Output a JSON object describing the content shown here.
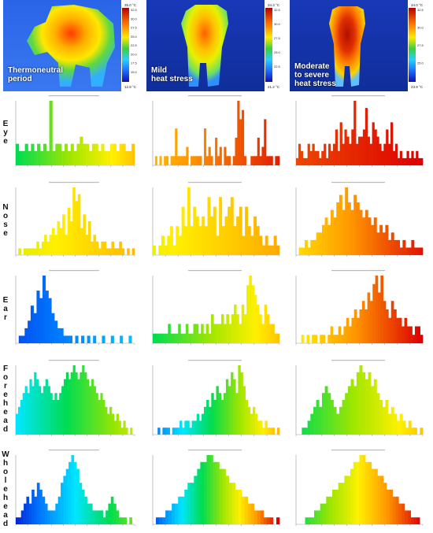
{
  "conditions": [
    {
      "label": "Thermoneutral\nperiod",
      "scale_max": "35.0 °C",
      "scale_min": "12.8 °C",
      "ticks": [
        "32.5",
        "30.0",
        "27.5",
        "25.0",
        "22.5",
        "20.0",
        "17.5",
        "15.0"
      ]
    },
    {
      "label": "Mild\nheat stress",
      "scale_max": "34.3 °C",
      "scale_min": "21.2 °C",
      "ticks": [
        "32.5",
        "30.0",
        "27.5",
        "25.0",
        "22.5"
      ]
    },
    {
      "label": "Moderate\nto severe\nheat stress",
      "scale_max": "34.0 °C",
      "scale_min": "23.9 °C",
      "ticks": [
        "32.5",
        "30.0",
        "27.5",
        "25.0"
      ]
    }
  ],
  "rows": [
    "Eye",
    "Nose",
    "Ear",
    "Forehead",
    "Whole head"
  ],
  "chart_data": {
    "type": "bar",
    "panels": [
      {
        "row": "Eye",
        "condition": "Thermoneutral period",
        "values": [
          3,
          2,
          2,
          3,
          2,
          3,
          2,
          3,
          2,
          3,
          2,
          9,
          2,
          3,
          3,
          2,
          3,
          2,
          3,
          2,
          3,
          4,
          3,
          3,
          2,
          3,
          3,
          2,
          3,
          2,
          2,
          3,
          3,
          2,
          3,
          3,
          2,
          2,
          3
        ]
      },
      {
        "row": "Eye",
        "condition": "Mild heat stress",
        "values": [
          0,
          1,
          0,
          1,
          0,
          1,
          1,
          0,
          1,
          1,
          4,
          1,
          1,
          1,
          1,
          2,
          0,
          1,
          1,
          1,
          1,
          1,
          0,
          4,
          1,
          2,
          1,
          0,
          3,
          1,
          2,
          0,
          2,
          1,
          1,
          0,
          1,
          3,
          7,
          5,
          6,
          1,
          0,
          0,
          1,
          1,
          1,
          3,
          1,
          2,
          5,
          1,
          1,
          1,
          0,
          1,
          1
        ]
      },
      {
        "row": "Eye",
        "condition": "Moderate to severe heat stress",
        "values": [
          1,
          3,
          2,
          1,
          1,
          3,
          2,
          3,
          2,
          2,
          1,
          2,
          3,
          1,
          3,
          2,
          3,
          5,
          2,
          6,
          3,
          5,
          4,
          3,
          5,
          9,
          3,
          4,
          4,
          5,
          8,
          4,
          3,
          6,
          5,
          4,
          3,
          2,
          3,
          5,
          3,
          6,
          2,
          3,
          1,
          2,
          1,
          1,
          2,
          1,
          2,
          1,
          2,
          1,
          1
        ]
      },
      {
        "row": "Nose",
        "condition": "Thermoneutral period",
        "values": [
          0,
          1,
          0,
          1,
          1,
          1,
          1,
          1,
          2,
          1,
          2,
          3,
          2,
          3,
          4,
          3,
          5,
          4,
          6,
          3,
          7,
          5,
          10,
          8,
          9,
          4,
          6,
          3,
          5,
          2,
          3,
          2,
          1,
          2,
          2,
          1,
          1,
          2,
          1,
          1,
          2,
          1,
          0,
          1,
          0,
          1
        ]
      },
      {
        "row": "Nose",
        "condition": "Mild heat stress",
        "values": [
          1,
          0,
          1,
          2,
          1,
          2,
          3,
          1,
          3,
          2,
          5,
          3,
          7,
          3,
          5,
          4,
          3,
          4,
          3,
          6,
          4,
          5,
          2,
          6,
          3,
          4,
          5,
          6,
          3,
          4,
          5,
          2,
          5,
          3,
          2,
          4,
          3,
          2,
          1,
          2,
          1,
          1,
          2,
          1
        ]
      },
      {
        "row": "Nose",
        "condition": "Moderate to severe heat stress",
        "values": [
          0,
          1,
          1,
          2,
          1,
          2,
          2,
          3,
          3,
          4,
          5,
          4,
          6,
          5,
          7,
          8,
          6,
          9,
          7,
          6,
          8,
          7,
          6,
          5,
          6,
          5,
          4,
          5,
          3,
          4,
          3,
          4,
          2,
          3,
          2,
          2,
          1,
          2,
          1,
          1,
          2,
          1,
          1,
          1
        ]
      },
      {
        "row": "Ear",
        "condition": "Thermoneutral period",
        "values": [
          0,
          1,
          1,
          2,
          3,
          5,
          4,
          7,
          6,
          9,
          7,
          6,
          4,
          3,
          2,
          2,
          1,
          1,
          1,
          0,
          1,
          0,
          1,
          0,
          1,
          0,
          1,
          0,
          0,
          1,
          0,
          0,
          1,
          0,
          0,
          1,
          0,
          0,
          1,
          0
        ]
      },
      {
        "row": "Ear",
        "condition": "Mild heat stress",
        "values": [
          1,
          1,
          1,
          1,
          1,
          1,
          2,
          1,
          1,
          1,
          2,
          1,
          1,
          2,
          1,
          1,
          2,
          2,
          1,
          2,
          1,
          2,
          1,
          3,
          2,
          2,
          2,
          3,
          2,
          3,
          2,
          3,
          4,
          3,
          2,
          4,
          3,
          6,
          7,
          6,
          5,
          4,
          3,
          2,
          4,
          3,
          2,
          2,
          1,
          1
        ]
      },
      {
        "row": "Ear",
        "condition": "Moderate to severe heat stress",
        "values": [
          0,
          0,
          1,
          0,
          1,
          0,
          1,
          1,
          0,
          1,
          1,
          0,
          1,
          2,
          1,
          1,
          2,
          1,
          2,
          3,
          2,
          3,
          4,
          3,
          4,
          5,
          4,
          6,
          5,
          7,
          8,
          6,
          8,
          5,
          4,
          3,
          5,
          4,
          3,
          3,
          2,
          3,
          2,
          2,
          1,
          2,
          2,
          1
        ]
      },
      {
        "row": "Forehead",
        "condition": "Thermoneutral period",
        "values": [
          3,
          4,
          5,
          6,
          7,
          6,
          8,
          7,
          9,
          8,
          7,
          6,
          7,
          8,
          7,
          6,
          5,
          6,
          5,
          6,
          7,
          8,
          9,
          8,
          9,
          10,
          9,
          8,
          9,
          10,
          9,
          8,
          7,
          8,
          7,
          6,
          5,
          6,
          5,
          4,
          3,
          4,
          3,
          2,
          3,
          2,
          1,
          2,
          1,
          0,
          1,
          0
        ]
      },
      {
        "row": "Forehead",
        "condition": "Mild heat stress",
        "values": [
          0,
          0,
          1,
          0,
          1,
          1,
          1,
          0,
          1,
          1,
          1,
          2,
          1,
          2,
          2,
          1,
          2,
          2,
          3,
          2,
          3,
          4,
          5,
          4,
          6,
          5,
          7,
          6,
          5,
          6,
          8,
          7,
          9,
          8,
          6,
          10,
          9,
          7,
          5,
          4,
          3,
          4,
          3,
          2,
          2,
          1,
          2,
          1,
          1,
          1,
          0,
          1
        ]
      },
      {
        "row": "Forehead",
        "condition": "Moderate to severe heat stress",
        "values": [
          0,
          0,
          1,
          1,
          2,
          3,
          4,
          5,
          4,
          6,
          7,
          6,
          5,
          4,
          3,
          4,
          5,
          6,
          7,
          8,
          7,
          9,
          10,
          9,
          8,
          9,
          7,
          8,
          6,
          5,
          4,
          5,
          3,
          4,
          3,
          2,
          3,
          2,
          1,
          2,
          1,
          1,
          0,
          1
        ]
      },
      {
        "row": "Whole head",
        "condition": "Thermoneutral period",
        "values": [
          1,
          1,
          2,
          3,
          4,
          3,
          5,
          4,
          6,
          5,
          4,
          3,
          2,
          2,
          2,
          3,
          4,
          6,
          7,
          8,
          9,
          10,
          9,
          8,
          6,
          5,
          4,
          3,
          3,
          2,
          2,
          2,
          2,
          1,
          2,
          3,
          4,
          3,
          2,
          1,
          1,
          1,
          0,
          1,
          0
        ]
      },
      {
        "row": "Whole head",
        "condition": "Mild heat stress",
        "values": [
          0,
          1,
          1,
          1,
          2,
          2,
          3,
          3,
          4,
          4,
          5,
          6,
          6,
          7,
          8,
          9,
          9,
          10,
          10,
          9,
          9,
          8,
          8,
          7,
          6,
          6,
          5,
          5,
          4,
          4,
          3,
          3,
          2,
          2,
          2,
          1,
          1,
          1,
          0,
          1
        ]
      },
      {
        "row": "Whole head",
        "condition": "Moderate to severe heat stress",
        "values": [
          0,
          0,
          0,
          1,
          1,
          1,
          2,
          2,
          3,
          3,
          4,
          4,
          5,
          5,
          6,
          6,
          7,
          7,
          8,
          9,
          9,
          10,
          10,
          9,
          9,
          8,
          8,
          7,
          7,
          6,
          5,
          5,
          4,
          4,
          3,
          3,
          2,
          2,
          1,
          1,
          1,
          0
        ]
      }
    ]
  }
}
